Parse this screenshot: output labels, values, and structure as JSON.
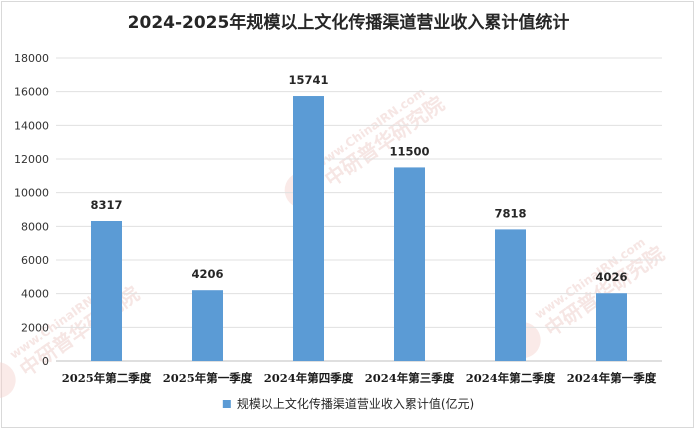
{
  "chart_data": {
    "type": "bar",
    "title": "2024-2025年规模以上文化传播渠道营业收入累计值统计",
    "categories": [
      "2025年第二季度",
      "2025年第一季度",
      "2024年第四季度",
      "2024年第三季度",
      "2024年第二季度",
      "2024年第一季度"
    ],
    "series": [
      {
        "name": "规模以上文化传播渠道营业收入累计值(亿元)",
        "values": [
          8317,
          4206,
          15741,
          11500,
          7818,
          4026
        ]
      }
    ],
    "yticks": [
      "0",
      "2000",
      "4000",
      "6000",
      "8000",
      "10000",
      "12000",
      "14000",
      "16000",
      "18000"
    ],
    "ylim": [
      0,
      18000
    ],
    "grid": true,
    "legend": "bottom",
    "colors": {
      "bar": "#5b9bd5"
    }
  },
  "watermark": {
    "text": "www.ChinaIRN.com",
    "brand": "中研普华研究院"
  }
}
